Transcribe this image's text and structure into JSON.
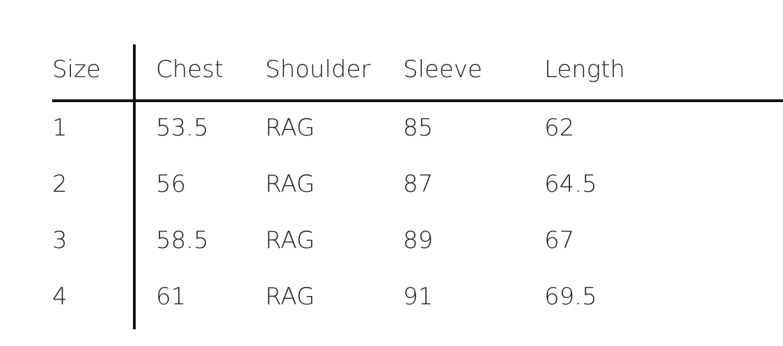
{
  "table": {
    "header": [
      "Size",
      "Chest",
      "Shoulder",
      "Sleeve",
      "Length"
    ],
    "rows": [
      [
        "1",
        "53.5",
        "RAG",
        "85",
        "62"
      ],
      [
        "2",
        "56",
        "RAG",
        "87",
        "64.5"
      ],
      [
        "3",
        "58.5",
        "RAG",
        "89",
        "67"
      ],
      [
        "4",
        "61",
        "RAG",
        "91",
        "69.5"
      ]
    ]
  }
}
